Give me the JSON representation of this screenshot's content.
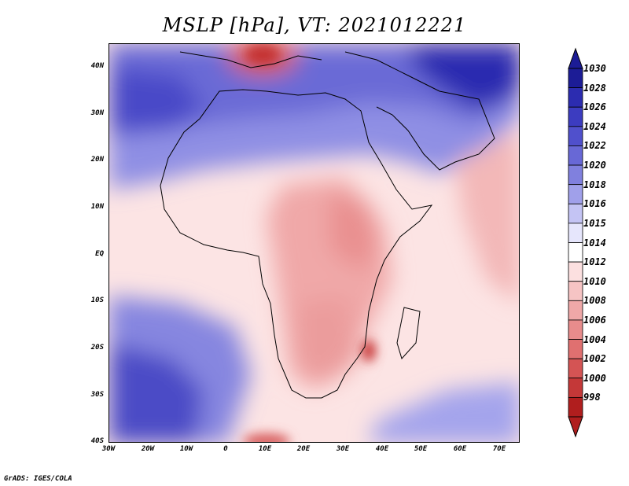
{
  "title": "MSLP [hPa], VT: 2021012221",
  "credit": "GrADS: IGES/COLA",
  "map": {
    "lon_labels": [
      "30W",
      "20W",
      "10W",
      "0",
      "10E",
      "20E",
      "30E",
      "40E",
      "50E",
      "60E",
      "70E"
    ],
    "lat_labels": [
      "40N",
      "30N",
      "20N",
      "10N",
      "EQ",
      "10S",
      "20S",
      "30S",
      "40S"
    ],
    "lon_range": [
      -30,
      75
    ],
    "lat_range": [
      -40,
      45
    ]
  },
  "colorbar": {
    "levels": [
      "1030",
      "1028",
      "1026",
      "1024",
      "1022",
      "1020",
      "1018",
      "1016",
      "1015",
      "1014",
      "1012",
      "1010",
      "1008",
      "1006",
      "1004",
      "1002",
      "1000",
      "998"
    ],
    "colors": [
      "#1c1c96",
      "#2c2cb0",
      "#3c3cc0",
      "#5050cc",
      "#6868d6",
      "#8080de",
      "#a0a0ea",
      "#c4c4f4",
      "#e6e6fc",
      "#ffffff",
      "#fce0e0",
      "#f6c4c4",
      "#efa8a8",
      "#e88c8c",
      "#e07070",
      "#d45454",
      "#c43838",
      "#b01e1e"
    ]
  }
}
